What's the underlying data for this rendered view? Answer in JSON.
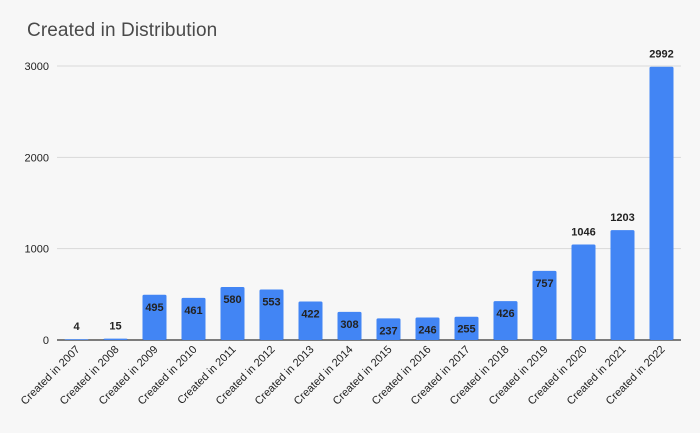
{
  "chart_data": {
    "type": "bar",
    "title": "Created in Distribution",
    "xlabel": "",
    "ylabel": "",
    "categories": [
      "Created in 2007",
      "Created in 2008",
      "Created in 2009",
      "Created in 2010",
      "Created in 2011",
      "Created in 2012",
      "Created in 2013",
      "Created in 2014",
      "Created in 2015",
      "Created in 2016",
      "Created in 2017",
      "Created in 2018",
      "Created in 2019",
      "Created in 2020",
      "Created in 2021",
      "Created in 2022"
    ],
    "values": [
      4,
      15,
      495,
      461,
      580,
      553,
      422,
      308,
      237,
      246,
      255,
      426,
      757,
      1046,
      1203,
      2992
    ],
    "ylim": [
      0,
      3000
    ],
    "yticks": [
      0,
      1000,
      2000,
      3000
    ],
    "grid": true,
    "legend": "none",
    "colors": {
      "bar": "#4285f4",
      "grid": "#d9d9d9",
      "axis": "#333333",
      "background": "#f7f7f7"
    }
  }
}
